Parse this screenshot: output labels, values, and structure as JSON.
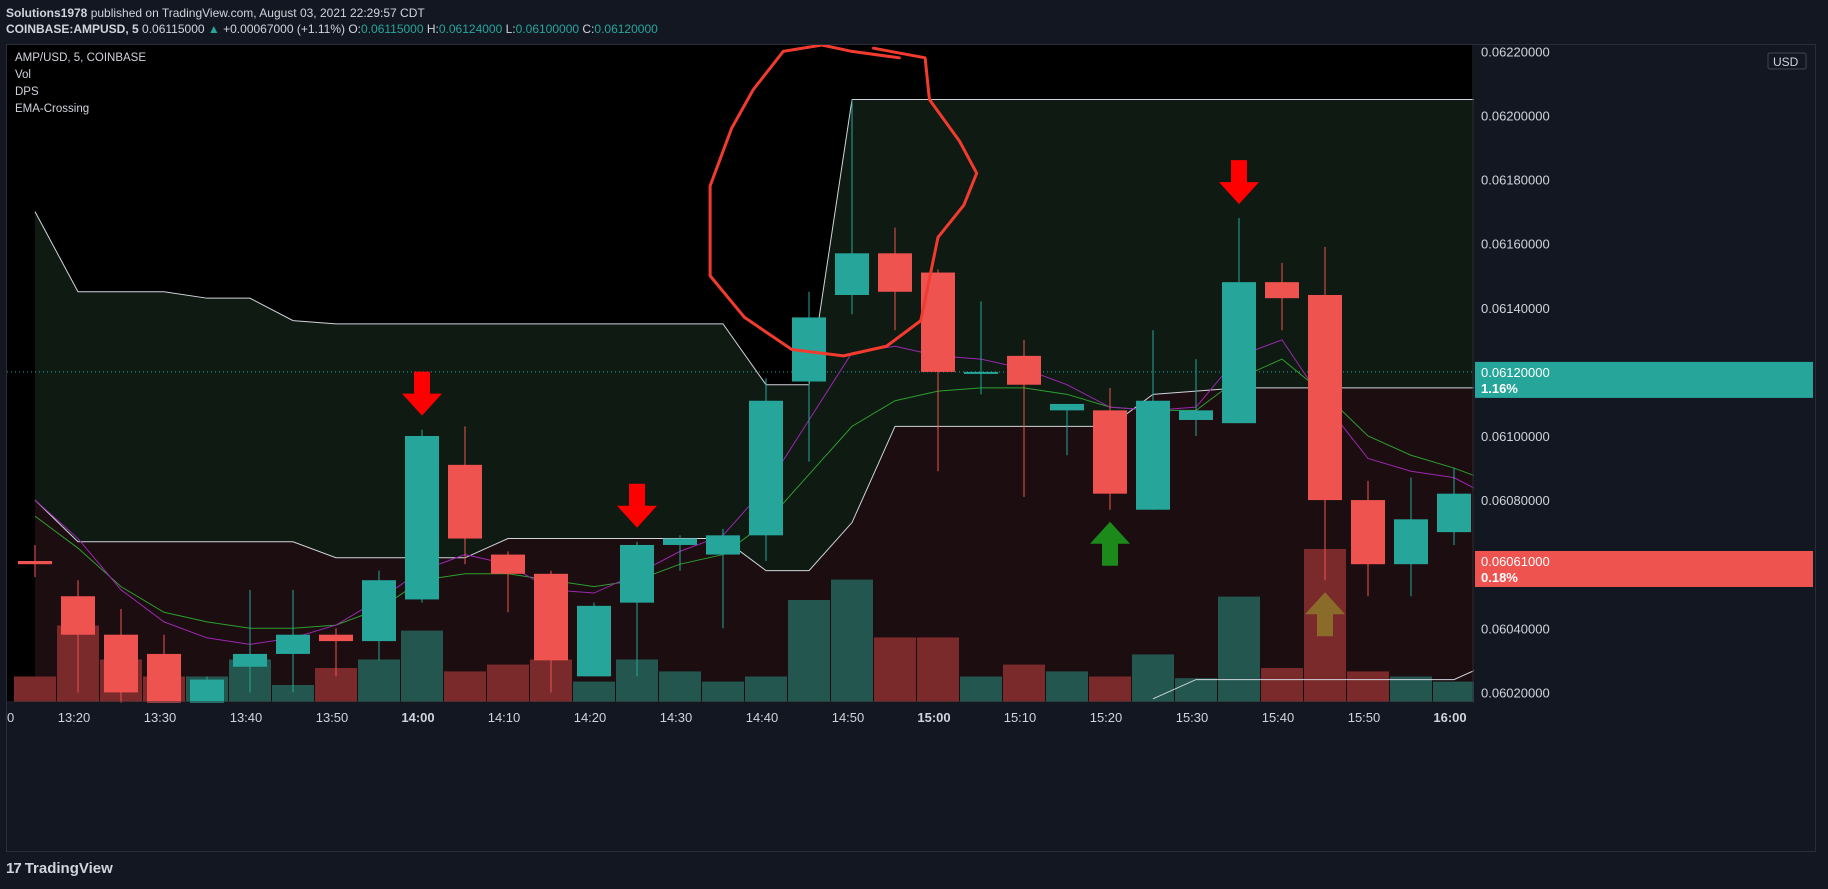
{
  "header": {
    "author": "Solutions1978",
    "published_text": "published on TradingView.com, August 03, 2021 22:29:57 CDT",
    "symbol_line": "COINBASE:AMPUSD, 5",
    "last_price": "0.06115000",
    "change": "+0.00067000 (+1.11%)",
    "o_label": "O:",
    "o_value": "0.06115000",
    "h_label": "H:",
    "h_value": "0.06124000",
    "l_label": "L:",
    "l_value": "0.06100000",
    "c_label": "C:",
    "c_value": "0.06120000"
  },
  "legend": {
    "series": "AMP/USD, 5, COINBASE",
    "vol": "Vol",
    "dps": "DPS",
    "ema": "EMA-Crossing"
  },
  "axis": {
    "currency": "USD",
    "price_ticks": [
      "0.06220000",
      "0.06200000",
      "0.06180000",
      "0.06160000",
      "0.06140000",
      "0.06120000",
      "0.06100000",
      "0.06080000",
      "0.06060000",
      "0.06040000",
      "0.06020000"
    ],
    "price_tick_values": [
      0.0622,
      0.062,
      0.0618,
      0.0616,
      0.0614,
      0.0612,
      0.061,
      0.0608,
      0.0606,
      0.0604,
      0.0602
    ],
    "time_labels": [
      "13:20",
      "13:30",
      "13:40",
      "13:50",
      "14:00",
      "14:10",
      "14:20",
      "14:30",
      "14:40",
      "14:50",
      "15:00",
      "15:10",
      "15:20",
      "15:30",
      "15:40",
      "15:50",
      "16:00"
    ],
    "time_label_bold": [
      false,
      false,
      false,
      false,
      true,
      false,
      false,
      false,
      false,
      false,
      true,
      false,
      false,
      false,
      false,
      false,
      true
    ],
    "time_label_slot": [
      1,
      3,
      5,
      7,
      9,
      11,
      13,
      15,
      17,
      19,
      21,
      23,
      25,
      27,
      29,
      31,
      33
    ],
    "left_edge_label": "0",
    "badge_top_value": "0.06120000",
    "badge_top_pct": "1.16%",
    "badge_bottom_value": "0.06061000",
    "badge_bottom_pct": "0.18%"
  },
  "footer": {
    "brand": "TradingView"
  },
  "colors": {
    "up": "#26a69a",
    "down": "#ef5350",
    "vol_up": "#22564f",
    "vol_down": "#7a2a2a",
    "ema_fast": "#9c27b0",
    "ema_slow": "#2e9e2e",
    "dps_line": "#d1d4dc",
    "arrow_down": "#ff0000",
    "arrow_up": "#1b8a1b",
    "arrow_up_faded": "#8b6b2a",
    "annotation": "#f23b2f"
  },
  "chart_data": {
    "type": "candlestick",
    "title": "AMP/USD, 5, COINBASE",
    "ylim": [
      0.06017,
      0.06222
    ],
    "candles": [
      {
        "o": 0.06061,
        "h": 0.06066,
        "l": 0.06056,
        "c": 0.0606
      },
      {
        "o": 0.0605,
        "h": 0.06055,
        "l": 0.0602,
        "c": 0.06038
      },
      {
        "o": 0.06038,
        "h": 0.06046,
        "l": 0.06015,
        "c": 0.0602
      },
      {
        "o": 0.06032,
        "h": 0.06038,
        "l": 0.0601,
        "c": 0.06016
      },
      {
        "o": 0.06016,
        "h": 0.06025,
        "l": 0.0601,
        "c": 0.06024
      },
      {
        "o": 0.06028,
        "h": 0.06052,
        "l": 0.0602,
        "c": 0.06032
      },
      {
        "o": 0.06032,
        "h": 0.06052,
        "l": 0.0602,
        "c": 0.06038
      },
      {
        "o": 0.06038,
        "h": 0.0604,
        "l": 0.06025,
        "c": 0.06036
      },
      {
        "o": 0.06036,
        "h": 0.06058,
        "l": 0.0603,
        "c": 0.06055
      },
      {
        "o": 0.06049,
        "h": 0.06102,
        "l": 0.06048,
        "c": 0.061
      },
      {
        "o": 0.06091,
        "h": 0.06103,
        "l": 0.0606,
        "c": 0.06068
      },
      {
        "o": 0.06063,
        "h": 0.06064,
        "l": 0.06045,
        "c": 0.06057
      },
      {
        "o": 0.06057,
        "h": 0.06058,
        "l": 0.0602,
        "c": 0.0603
      },
      {
        "o": 0.06025,
        "h": 0.06048,
        "l": 0.06025,
        "c": 0.06047
      },
      {
        "o": 0.06048,
        "h": 0.06067,
        "l": 0.06025,
        "c": 0.06066
      },
      {
        "o": 0.06066,
        "h": 0.06069,
        "l": 0.06058,
        "c": 0.06068
      },
      {
        "o": 0.06063,
        "h": 0.06071,
        "l": 0.0604,
        "c": 0.06069
      },
      {
        "o": 0.06069,
        "h": 0.06118,
        "l": 0.06061,
        "c": 0.06111
      },
      {
        "o": 0.06117,
        "h": 0.06145,
        "l": 0.06092,
        "c": 0.06137
      },
      {
        "o": 0.06144,
        "h": 0.06205,
        "l": 0.06138,
        "c": 0.06157
      },
      {
        "o": 0.06157,
        "h": 0.06165,
        "l": 0.06133,
        "c": 0.06145
      },
      {
        "o": 0.06151,
        "h": 0.06152,
        "l": 0.06089,
        "c": 0.0612
      },
      {
        "o": 0.0612,
        "h": 0.06142,
        "l": 0.06113,
        "c": 0.0612
      },
      {
        "o": 0.06125,
        "h": 0.0613,
        "l": 0.06081,
        "c": 0.06116
      },
      {
        "o": 0.06108,
        "h": 0.0611,
        "l": 0.06094,
        "c": 0.0611
      },
      {
        "o": 0.06108,
        "h": 0.06115,
        "l": 0.06077,
        "c": 0.06082
      },
      {
        "o": 0.06077,
        "h": 0.06133,
        "l": 0.06077,
        "c": 0.06111
      },
      {
        "o": 0.06105,
        "h": 0.06124,
        "l": 0.061,
        "c": 0.06108
      },
      {
        "o": 0.06104,
        "h": 0.06168,
        "l": 0.06104,
        "c": 0.06148
      },
      {
        "o": 0.06148,
        "h": 0.06154,
        "l": 0.06133,
        "c": 0.06143
      },
      {
        "o": 0.06144,
        "h": 0.06159,
        "l": 0.06055,
        "c": 0.0608
      },
      {
        "o": 0.0608,
        "h": 0.06086,
        "l": 0.0605,
        "c": 0.0606
      },
      {
        "o": 0.0606,
        "h": 0.06087,
        "l": 0.0605,
        "c": 0.06074
      },
      {
        "o": 0.0607,
        "h": 0.0609,
        "l": 0.06066,
        "c": 0.06082
      },
      {
        "o": 0.06086,
        "h": 0.06096,
        "l": 0.0605,
        "c": 0.06061
      }
    ],
    "volume_rel": [
      0.15,
      0.45,
      0.25,
      0.15,
      0.15,
      0.25,
      0.1,
      0.2,
      0.25,
      0.42,
      0.18,
      0.22,
      0.25,
      0.12,
      0.25,
      0.18,
      0.12,
      0.15,
      0.6,
      0.72,
      0.38,
      0.38,
      0.15,
      0.22,
      0.18,
      0.15,
      0.28,
      0.14,
      0.62,
      0.2,
      0.9,
      0.18,
      0.15,
      0.12,
      0.3
    ],
    "ema_fast": [
      0.0608,
      0.06068,
      0.06052,
      0.06042,
      0.06037,
      0.06035,
      0.06037,
      0.06041,
      0.06049,
      0.06058,
      0.06063,
      0.0606,
      0.06052,
      0.06051,
      0.06057,
      0.06064,
      0.06069,
      0.06084,
      0.06105,
      0.06126,
      0.06128,
      0.06125,
      0.06124,
      0.06121,
      0.06116,
      0.06109,
      0.06108,
      0.06109,
      0.06125,
      0.0613,
      0.0611,
      0.06093,
      0.06089,
      0.06087,
      0.0608
    ],
    "ema_slow": [
      0.06075,
      0.06065,
      0.06053,
      0.06045,
      0.06042,
      0.0604,
      0.0604,
      0.06041,
      0.06046,
      0.06055,
      0.06057,
      0.06057,
      0.06055,
      0.06053,
      0.06055,
      0.0606,
      0.06063,
      0.06073,
      0.06088,
      0.06103,
      0.06111,
      0.06114,
      0.06115,
      0.06115,
      0.06113,
      0.06109,
      0.06108,
      0.06108,
      0.06118,
      0.06124,
      0.06113,
      0.061,
      0.06094,
      0.0609,
      0.06085
    ],
    "dps_upper": [
      0.0617,
      0.06145,
      0.06145,
      0.06145,
      0.06143,
      0.06143,
      0.06136,
      0.06135,
      0.06135,
      0.06135,
      0.06135,
      0.06135,
      0.06135,
      0.06135,
      0.06135,
      0.06135,
      0.06135,
      0.06116,
      0.06116,
      0.06205,
      0.06205,
      0.06205,
      0.06205,
      0.06205,
      0.06205,
      0.06205,
      0.06205,
      0.06205,
      0.06205,
      0.06205,
      0.06205,
      0.06205,
      0.06205,
      0.06205,
      0.06205
    ],
    "dps_lower": [
      0.0608,
      0.06067,
      0.06067,
      0.06067,
      0.06067,
      0.06067,
      0.06067,
      0.06062,
      0.06062,
      0.06062,
      0.06062,
      0.06068,
      0.06068,
      0.06068,
      0.06068,
      0.06068,
      0.06068,
      0.06058,
      0.06058,
      0.06073,
      0.06103,
      0.06103,
      0.06103,
      0.06103,
      0.06103,
      0.06103,
      0.06113,
      0.06114,
      0.06115,
      0.06115,
      0.06115,
      0.06115,
      0.06115,
      0.06115,
      0.06115
    ],
    "dps_third": [
      null,
      null,
      null,
      null,
      null,
      null,
      null,
      null,
      null,
      null,
      null,
      null,
      null,
      null,
      null,
      null,
      null,
      null,
      null,
      null,
      null,
      null,
      null,
      null,
      null,
      null,
      0.06018,
      0.06024,
      0.06024,
      0.06024,
      0.06024,
      0.06024,
      0.06024,
      0.06024,
      0.0603
    ],
    "signals_down": [
      9,
      14,
      28
    ],
    "signals_up": [
      25
    ],
    "signals_up_faded": [
      12,
      30
    ]
  }
}
